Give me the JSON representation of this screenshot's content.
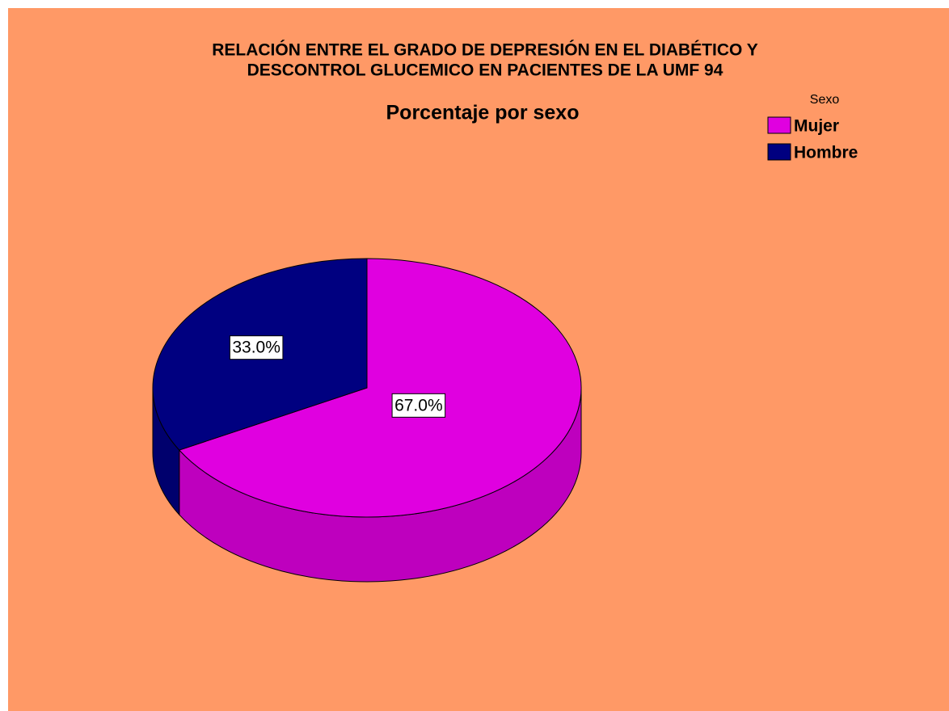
{
  "chart_data": {
    "type": "pie3d",
    "title": [
      "RELACIÓN ENTRE EL GRADO DE  DEPRESIÓN EN EL DIABÉTICO Y",
      "DESCONTROL GLUCEMICO EN PACIENTES DE LA UMF  94"
    ],
    "subtitle": "Porcentaje por sexo",
    "legend_title": "Sexo",
    "categories": [
      "Mujer",
      "Hombre"
    ],
    "values": [
      67.0,
      33.0
    ],
    "value_labels": [
      "67.0%",
      "33.0%"
    ],
    "colors": [
      "#E000E0",
      "#000080"
    ],
    "legend": "top-right"
  }
}
